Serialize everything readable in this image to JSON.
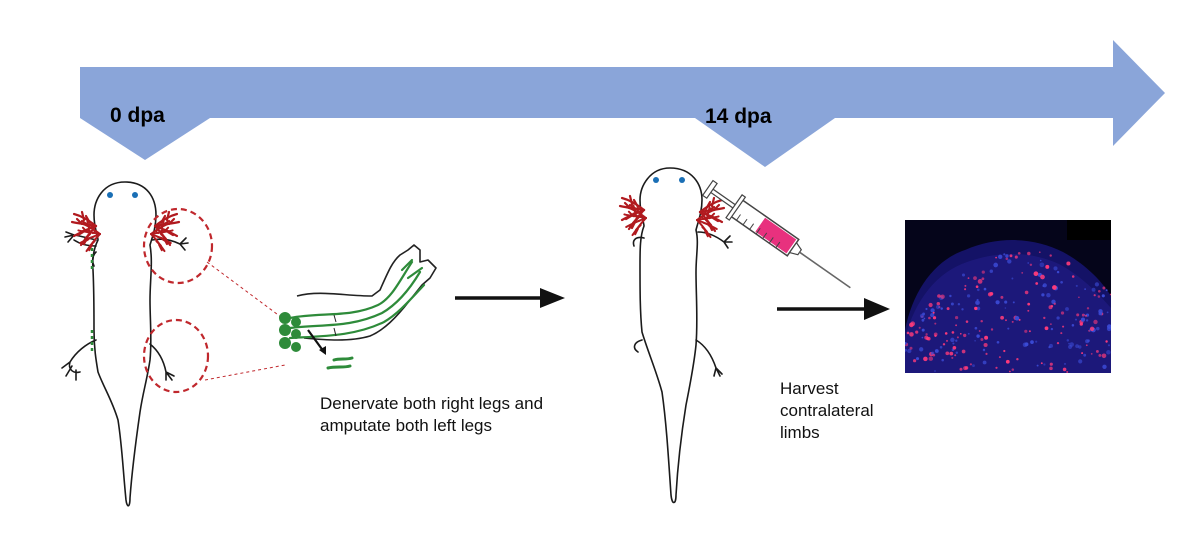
{
  "timeline": {
    "color": "#8aa5d9",
    "points": [
      {
        "label": "0 dpa"
      },
      {
        "label": "14 dpa"
      }
    ]
  },
  "steps": {
    "step1_text": [
      "Denervate both right legs and",
      "amputate both left legs"
    ],
    "step2_text": [
      "Harvest",
      "contralateral",
      "limbs"
    ]
  },
  "colors": {
    "gills": "#b11a1f",
    "eyes": "#1a6fb5",
    "nerve": "#2e8b3a",
    "marker_circle": "#c0282d",
    "syringe_fluid": "#e8317e",
    "arrow": "#111111",
    "tissue_background": "#05051a",
    "tissue_nuclei": "#3b4bd6",
    "tissue_signal": "#ff3a7a"
  },
  "icons": [
    "axolotl-before",
    "nerve-limb-schematic",
    "axolotl-after",
    "syringe-icon",
    "tissue-micrograph"
  ]
}
